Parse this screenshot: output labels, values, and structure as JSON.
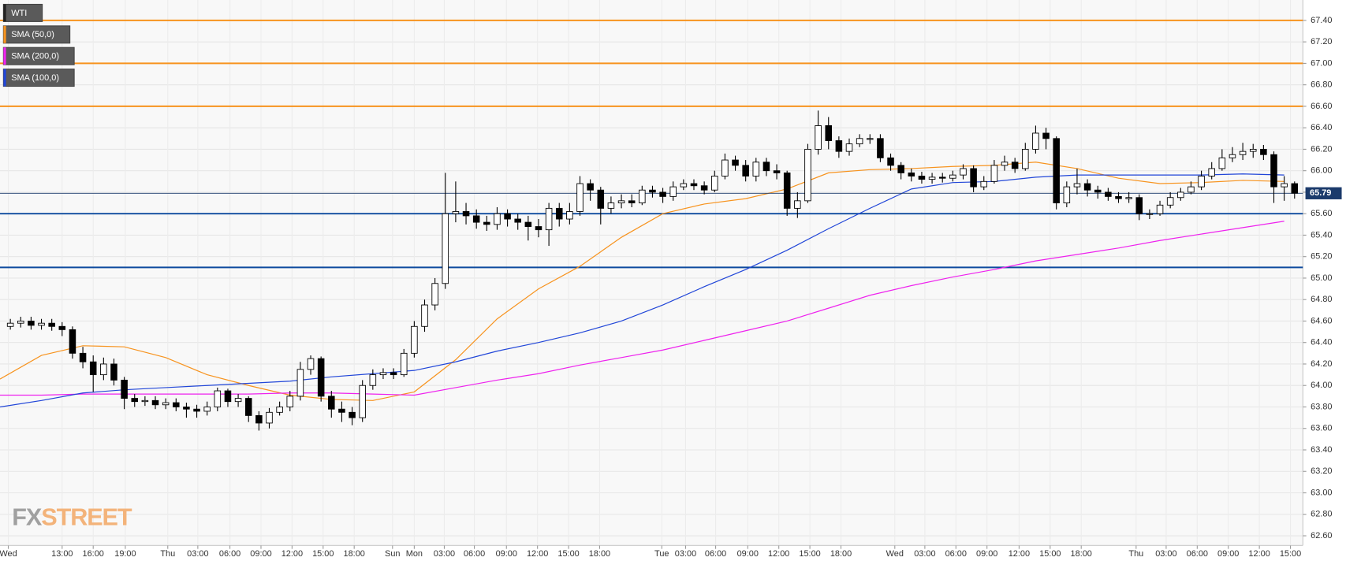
{
  "chart_data": {
    "type": "candlestick",
    "name": "WTI",
    "xlim": [
      0,
      125.8
    ],
    "ylim": [
      62.51,
      67.59
    ],
    "grid": true,
    "up_color": "#ffffff",
    "down_color": "#000000",
    "x": [
      1,
      2,
      3,
      4,
      5,
      6,
      7,
      8,
      9,
      10,
      11,
      12,
      13,
      14,
      15,
      16,
      17,
      18,
      19,
      20,
      21,
      22,
      23,
      24,
      25,
      26,
      27,
      28,
      29,
      30,
      31,
      32,
      33,
      34,
      35,
      36,
      37,
      38,
      39,
      40,
      41,
      42,
      43,
      44,
      45,
      46,
      47,
      48,
      49,
      50,
      51,
      52,
      53,
      54,
      55,
      56,
      57,
      58,
      59,
      60,
      61,
      62,
      63,
      64,
      65,
      66,
      67,
      68,
      69,
      70,
      71,
      72,
      73,
      74,
      75,
      76,
      77,
      78,
      79,
      80,
      81,
      82,
      83,
      84,
      85,
      86,
      87,
      88,
      89,
      90,
      91,
      92,
      93,
      94,
      95,
      96,
      97,
      98,
      99,
      100,
      101,
      102,
      103,
      104,
      105,
      106,
      107,
      108,
      109,
      110,
      111,
      112,
      113,
      114,
      115,
      116,
      117,
      118,
      119,
      120,
      121,
      122,
      123,
      124,
      125
    ],
    "open": [
      64.55,
      64.58,
      64.6,
      64.56,
      64.58,
      64.55,
      64.52,
      64.3,
      64.22,
      64.1,
      64.2,
      64.05,
      63.88,
      63.85,
      63.86,
      63.82,
      63.84,
      63.8,
      63.78,
      63.76,
      63.8,
      63.95,
      63.85,
      63.88,
      63.72,
      63.65,
      63.75,
      63.8,
      63.9,
      64.15,
      64.25,
      63.9,
      63.78,
      63.75,
      63.7,
      64.0,
      64.1,
      64.12,
      64.1,
      64.3,
      64.55,
      64.75,
      64.95,
      65.6,
      65.62,
      65.58,
      65.52,
      65.5,
      65.6,
      65.55,
      65.52,
      65.48,
      65.45,
      65.65,
      65.55,
      65.62,
      65.88,
      65.82,
      65.65,
      65.7,
      65.72,
      65.7,
      65.82,
      65.8,
      65.76,
      65.85,
      65.88,
      65.86,
      65.82,
      65.95,
      66.1,
      66.05,
      65.95,
      66.08,
      66.0,
      65.98,
      65.65,
      65.72,
      66.2,
      66.42,
      66.28,
      66.18,
      66.25,
      66.3,
      66.3,
      66.12,
      66.05,
      65.98,
      65.95,
      65.92,
      65.94,
      65.93,
      65.96,
      66.02,
      65.85,
      65.9,
      66.05,
      66.08,
      66.02,
      66.2,
      66.35,
      66.3,
      65.7,
      65.85,
      65.88,
      65.82,
      65.8,
      65.76,
      65.74,
      65.75,
      65.6,
      65.6,
      65.68,
      65.75,
      65.8,
      65.85,
      65.95,
      66.02,
      66.12,
      66.15,
      66.18,
      66.2,
      66.15,
      65.85,
      65.88
    ],
    "high": [
      64.62,
      64.64,
      64.64,
      64.62,
      64.62,
      64.59,
      64.55,
      64.36,
      64.28,
      64.26,
      64.25,
      64.08,
      63.92,
      63.9,
      63.9,
      63.88,
      63.88,
      63.84,
      63.82,
      63.85,
      63.98,
      63.97,
      63.92,
      63.9,
      63.76,
      63.79,
      63.85,
      63.95,
      64.22,
      64.28,
      64.27,
      63.95,
      63.85,
      63.8,
      64.05,
      64.15,
      64.16,
      64.16,
      64.34,
      64.6,
      64.8,
      65.0,
      65.98,
      65.9,
      65.7,
      65.64,
      65.58,
      65.66,
      65.64,
      65.6,
      65.58,
      65.55,
      65.7,
      65.7,
      65.7,
      65.95,
      65.92,
      65.85,
      65.76,
      65.78,
      65.78,
      65.86,
      65.86,
      65.84,
      65.9,
      65.92,
      65.92,
      65.9,
      66.0,
      66.16,
      66.14,
      66.1,
      66.12,
      66.12,
      66.06,
      66.0,
      65.8,
      66.25,
      66.56,
      66.5,
      66.32,
      66.3,
      66.34,
      66.34,
      66.34,
      66.16,
      66.08,
      66.02,
      65.99,
      65.98,
      65.98,
      66.0,
      66.06,
      66.05,
      65.95,
      66.1,
      66.14,
      66.12,
      66.26,
      66.42,
      66.4,
      66.32,
      65.9,
      66.02,
      65.92,
      65.86,
      65.84,
      65.8,
      65.8,
      65.78,
      65.64,
      65.72,
      65.8,
      65.84,
      65.9,
      66.0,
      66.08,
      66.2,
      66.22,
      66.26,
      66.25,
      66.24,
      66.18,
      65.95,
      65.9
    ],
    "low": [
      64.52,
      64.54,
      64.52,
      64.52,
      64.51,
      64.46,
      64.25,
      64.16,
      63.94,
      64.05,
      64.0,
      63.78,
      63.8,
      63.81,
      63.78,
      63.78,
      63.76,
      63.7,
      63.7,
      63.72,
      63.76,
      63.8,
      63.8,
      63.66,
      63.58,
      63.6,
      63.72,
      63.76,
      63.86,
      64.1,
      63.85,
      63.7,
      63.66,
      63.63,
      63.66,
      63.96,
      64.06,
      64.06,
      64.08,
      64.26,
      64.5,
      64.7,
      64.9,
      65.52,
      65.5,
      65.46,
      65.44,
      65.45,
      65.48,
      65.45,
      65.35,
      65.38,
      65.3,
      65.48,
      65.5,
      65.58,
      65.72,
      65.5,
      65.6,
      65.65,
      65.66,
      65.68,
      65.75,
      65.7,
      65.72,
      65.82,
      65.82,
      65.78,
      65.8,
      65.92,
      66.0,
      65.9,
      65.9,
      65.95,
      65.92,
      65.58,
      65.56,
      65.7,
      66.15,
      66.2,
      66.12,
      66.14,
      66.22,
      66.25,
      66.08,
      66.0,
      65.92,
      65.9,
      65.88,
      65.88,
      65.89,
      65.9,
      65.92,
      65.8,
      65.82,
      65.88,
      66.0,
      65.98,
      66.0,
      66.16,
      66.2,
      65.64,
      65.66,
      65.78,
      65.76,
      65.74,
      65.72,
      65.7,
      65.7,
      65.54,
      65.55,
      65.58,
      65.65,
      65.72,
      65.78,
      65.82,
      65.92,
      66.0,
      66.08,
      66.1,
      66.12,
      66.1,
      65.7,
      65.72,
      65.74
    ],
    "close": [
      64.58,
      64.6,
      64.56,
      64.58,
      64.55,
      64.52,
      64.3,
      64.22,
      64.1,
      64.2,
      64.05,
      63.88,
      63.85,
      63.86,
      63.82,
      63.84,
      63.8,
      63.78,
      63.76,
      63.8,
      63.95,
      63.85,
      63.88,
      63.72,
      63.65,
      63.75,
      63.8,
      63.9,
      64.15,
      64.25,
      63.9,
      63.78,
      63.75,
      63.7,
      64.0,
      64.1,
      64.12,
      64.1,
      64.3,
      64.55,
      64.75,
      64.95,
      65.6,
      65.62,
      65.58,
      65.52,
      65.5,
      65.6,
      65.55,
      65.52,
      65.48,
      65.45,
      65.65,
      65.55,
      65.62,
      65.88,
      65.82,
      65.65,
      65.7,
      65.72,
      65.7,
      65.82,
      65.8,
      65.76,
      65.85,
      65.88,
      65.86,
      65.82,
      65.95,
      66.1,
      66.05,
      65.95,
      66.08,
      66.0,
      65.98,
      65.65,
      65.72,
      66.2,
      66.42,
      66.28,
      66.18,
      66.25,
      66.3,
      66.3,
      66.12,
      66.05,
      65.98,
      65.95,
      65.92,
      65.94,
      65.93,
      65.96,
      66.02,
      65.85,
      65.9,
      66.05,
      66.08,
      66.02,
      66.2,
      66.35,
      66.3,
      65.7,
      65.85,
      65.88,
      65.82,
      65.8,
      65.76,
      65.74,
      65.75,
      65.6,
      65.6,
      65.68,
      65.75,
      65.8,
      65.85,
      65.95,
      66.02,
      66.12,
      66.15,
      66.18,
      66.2,
      66.15,
      65.85,
      65.88,
      65.79
    ],
    "lines": [
      {
        "name": "SMA (50,0)",
        "color": "#f7931e",
        "x": [
          0,
          4,
          8,
          12,
          16,
          20,
          24,
          28,
          32,
          36,
          40,
          44,
          48,
          52,
          56,
          60,
          64,
          68,
          72,
          76,
          80,
          84,
          88,
          92,
          96,
          100,
          104,
          108,
          112,
          116,
          120,
          124
        ],
        "values": [
          64.06,
          64.28,
          64.37,
          64.36,
          64.26,
          64.1,
          64.0,
          63.91,
          63.87,
          63.86,
          63.94,
          64.24,
          64.62,
          64.9,
          65.11,
          65.38,
          65.6,
          65.69,
          65.74,
          65.83,
          65.98,
          66.01,
          66.02,
          66.04,
          66.05,
          66.08,
          66.02,
          65.93,
          65.88,
          65.89,
          65.91,
          65.9
        ]
      },
      {
        "name": "SMA (200,0)",
        "color": "#ee22ee",
        "x": [
          0,
          4,
          8,
          12,
          16,
          20,
          24,
          28,
          32,
          36,
          40,
          44,
          48,
          52,
          56,
          60,
          64,
          68,
          72,
          76,
          80,
          84,
          88,
          92,
          96,
          100,
          104,
          108,
          112,
          116,
          120,
          124
        ],
        "values": [
          63.91,
          63.91,
          63.92,
          63.92,
          63.92,
          63.92,
          63.92,
          63.93,
          63.93,
          63.92,
          63.91,
          63.98,
          64.05,
          64.11,
          64.19,
          64.26,
          64.33,
          64.42,
          64.51,
          64.6,
          64.72,
          64.84,
          64.93,
          65.01,
          65.08,
          65.16,
          65.22,
          65.28,
          65.35,
          65.41,
          65.47,
          65.53
        ]
      },
      {
        "name": "SMA (100,0)",
        "color": "#2146d8",
        "x": [
          0,
          4,
          8,
          12,
          16,
          20,
          24,
          28,
          32,
          36,
          40,
          44,
          48,
          52,
          56,
          60,
          64,
          68,
          72,
          76,
          80,
          84,
          88,
          92,
          96,
          100,
          104,
          108,
          112,
          116,
          120,
          124
        ],
        "values": [
          63.8,
          63.86,
          63.93,
          63.96,
          63.98,
          64.0,
          64.02,
          64.04,
          64.08,
          64.11,
          64.14,
          64.22,
          64.32,
          64.4,
          64.49,
          64.6,
          64.75,
          64.92,
          65.08,
          65.26,
          65.46,
          65.65,
          65.83,
          65.89,
          65.9,
          65.94,
          65.96,
          65.96,
          65.96,
          65.96,
          65.97,
          65.96
        ]
      }
    ],
    "levels": [
      {
        "value": 67.4,
        "color": "#f7931e"
      },
      {
        "value": 67.0,
        "color": "#f7931e"
      },
      {
        "value": 66.6,
        "color": "#f7931e"
      },
      {
        "value": 65.6,
        "color": "#0d4a9e"
      },
      {
        "value": 65.1,
        "color": "#0d4a9e"
      }
    ],
    "last_price": 65.79,
    "last_price_color": "#1b3a6b",
    "yticks": [
      {
        "value": 62.6,
        "label": "62.60"
      },
      {
        "value": 62.8,
        "label": "62.80"
      },
      {
        "value": 63.0,
        "label": "63.00"
      },
      {
        "value": 63.2,
        "label": "63.20"
      },
      {
        "value": 63.4,
        "label": "63.40"
      },
      {
        "value": 63.6,
        "label": "63.60"
      },
      {
        "value": 63.8,
        "label": "63.80"
      },
      {
        "value": 64.0,
        "label": "64.00"
      },
      {
        "value": 64.2,
        "label": "64.20"
      },
      {
        "value": 64.4,
        "label": "64.40"
      },
      {
        "value": 64.6,
        "label": "64.60"
      },
      {
        "value": 64.8,
        "label": "64.80"
      },
      {
        "value": 65.0,
        "label": "65.00"
      },
      {
        "value": 65.2,
        "label": "65.20"
      },
      {
        "value": 65.4,
        "label": "65.40"
      },
      {
        "value": 65.6,
        "label": "65.60"
      },
      {
        "value": 65.8,
        "label": "65.80"
      },
      {
        "value": 66.0,
        "label": "66.00"
      },
      {
        "value": 66.2,
        "label": "66.20"
      },
      {
        "value": 66.4,
        "label": "66.40"
      },
      {
        "value": 66.6,
        "label": "66.60"
      },
      {
        "value": 66.8,
        "label": "66.80"
      },
      {
        "value": 67.0,
        "label": "67.00"
      },
      {
        "value": 67.2,
        "label": "67.20"
      },
      {
        "value": 67.4,
        "label": "67.40"
      }
    ],
    "xticks": [
      {
        "value": 0.8,
        "label": "Wed"
      },
      {
        "value": 6,
        "label": "13:00"
      },
      {
        "value": 9,
        "label": "16:00"
      },
      {
        "value": 12.1,
        "label": "19:00"
      },
      {
        "value": 16.2,
        "label": "Thu"
      },
      {
        "value": 19.1,
        "label": "03:00"
      },
      {
        "value": 22.2,
        "label": "06:00"
      },
      {
        "value": 25.2,
        "label": "09:00"
      },
      {
        "value": 28.2,
        "label": "12:00"
      },
      {
        "value": 31.2,
        "label": "15:00"
      },
      {
        "value": 34.2,
        "label": "18:00"
      },
      {
        "value": 37.9,
        "label": "Sun"
      },
      {
        "value": 40,
        "label": "Mon"
      },
      {
        "value": 42.9,
        "label": "03:00"
      },
      {
        "value": 45.8,
        "label": "06:00"
      },
      {
        "value": 48.9,
        "label": "09:00"
      },
      {
        "value": 51.9,
        "label": "12:00"
      },
      {
        "value": 54.9,
        "label": "15:00"
      },
      {
        "value": 57.9,
        "label": "18:00"
      },
      {
        "value": 63.9,
        "label": "Tue"
      },
      {
        "value": 66.2,
        "label": "03:00"
      },
      {
        "value": 69.1,
        "label": "06:00"
      },
      {
        "value": 72.2,
        "label": "09:00"
      },
      {
        "value": 75.2,
        "label": "12:00"
      },
      {
        "value": 78.2,
        "label": "15:00"
      },
      {
        "value": 81.2,
        "label": "18:00"
      },
      {
        "value": 86.4,
        "label": "Wed"
      },
      {
        "value": 89.3,
        "label": "03:00"
      },
      {
        "value": 92.3,
        "label": "06:00"
      },
      {
        "value": 95.3,
        "label": "09:00"
      },
      {
        "value": 98.4,
        "label": "12:00"
      },
      {
        "value": 101.4,
        "label": "15:00"
      },
      {
        "value": 104.4,
        "label": "18:00"
      },
      {
        "value": 109.7,
        "label": "Thu"
      },
      {
        "value": 112.6,
        "label": "03:00"
      },
      {
        "value": 115.6,
        "label": "06:00"
      },
      {
        "value": 118.6,
        "label": "09:00"
      },
      {
        "value": 121.6,
        "label": "12:00"
      },
      {
        "value": 124.6,
        "label": "15:00"
      }
    ],
    "watermark": {
      "first": "FX",
      "second": "STREET"
    }
  }
}
